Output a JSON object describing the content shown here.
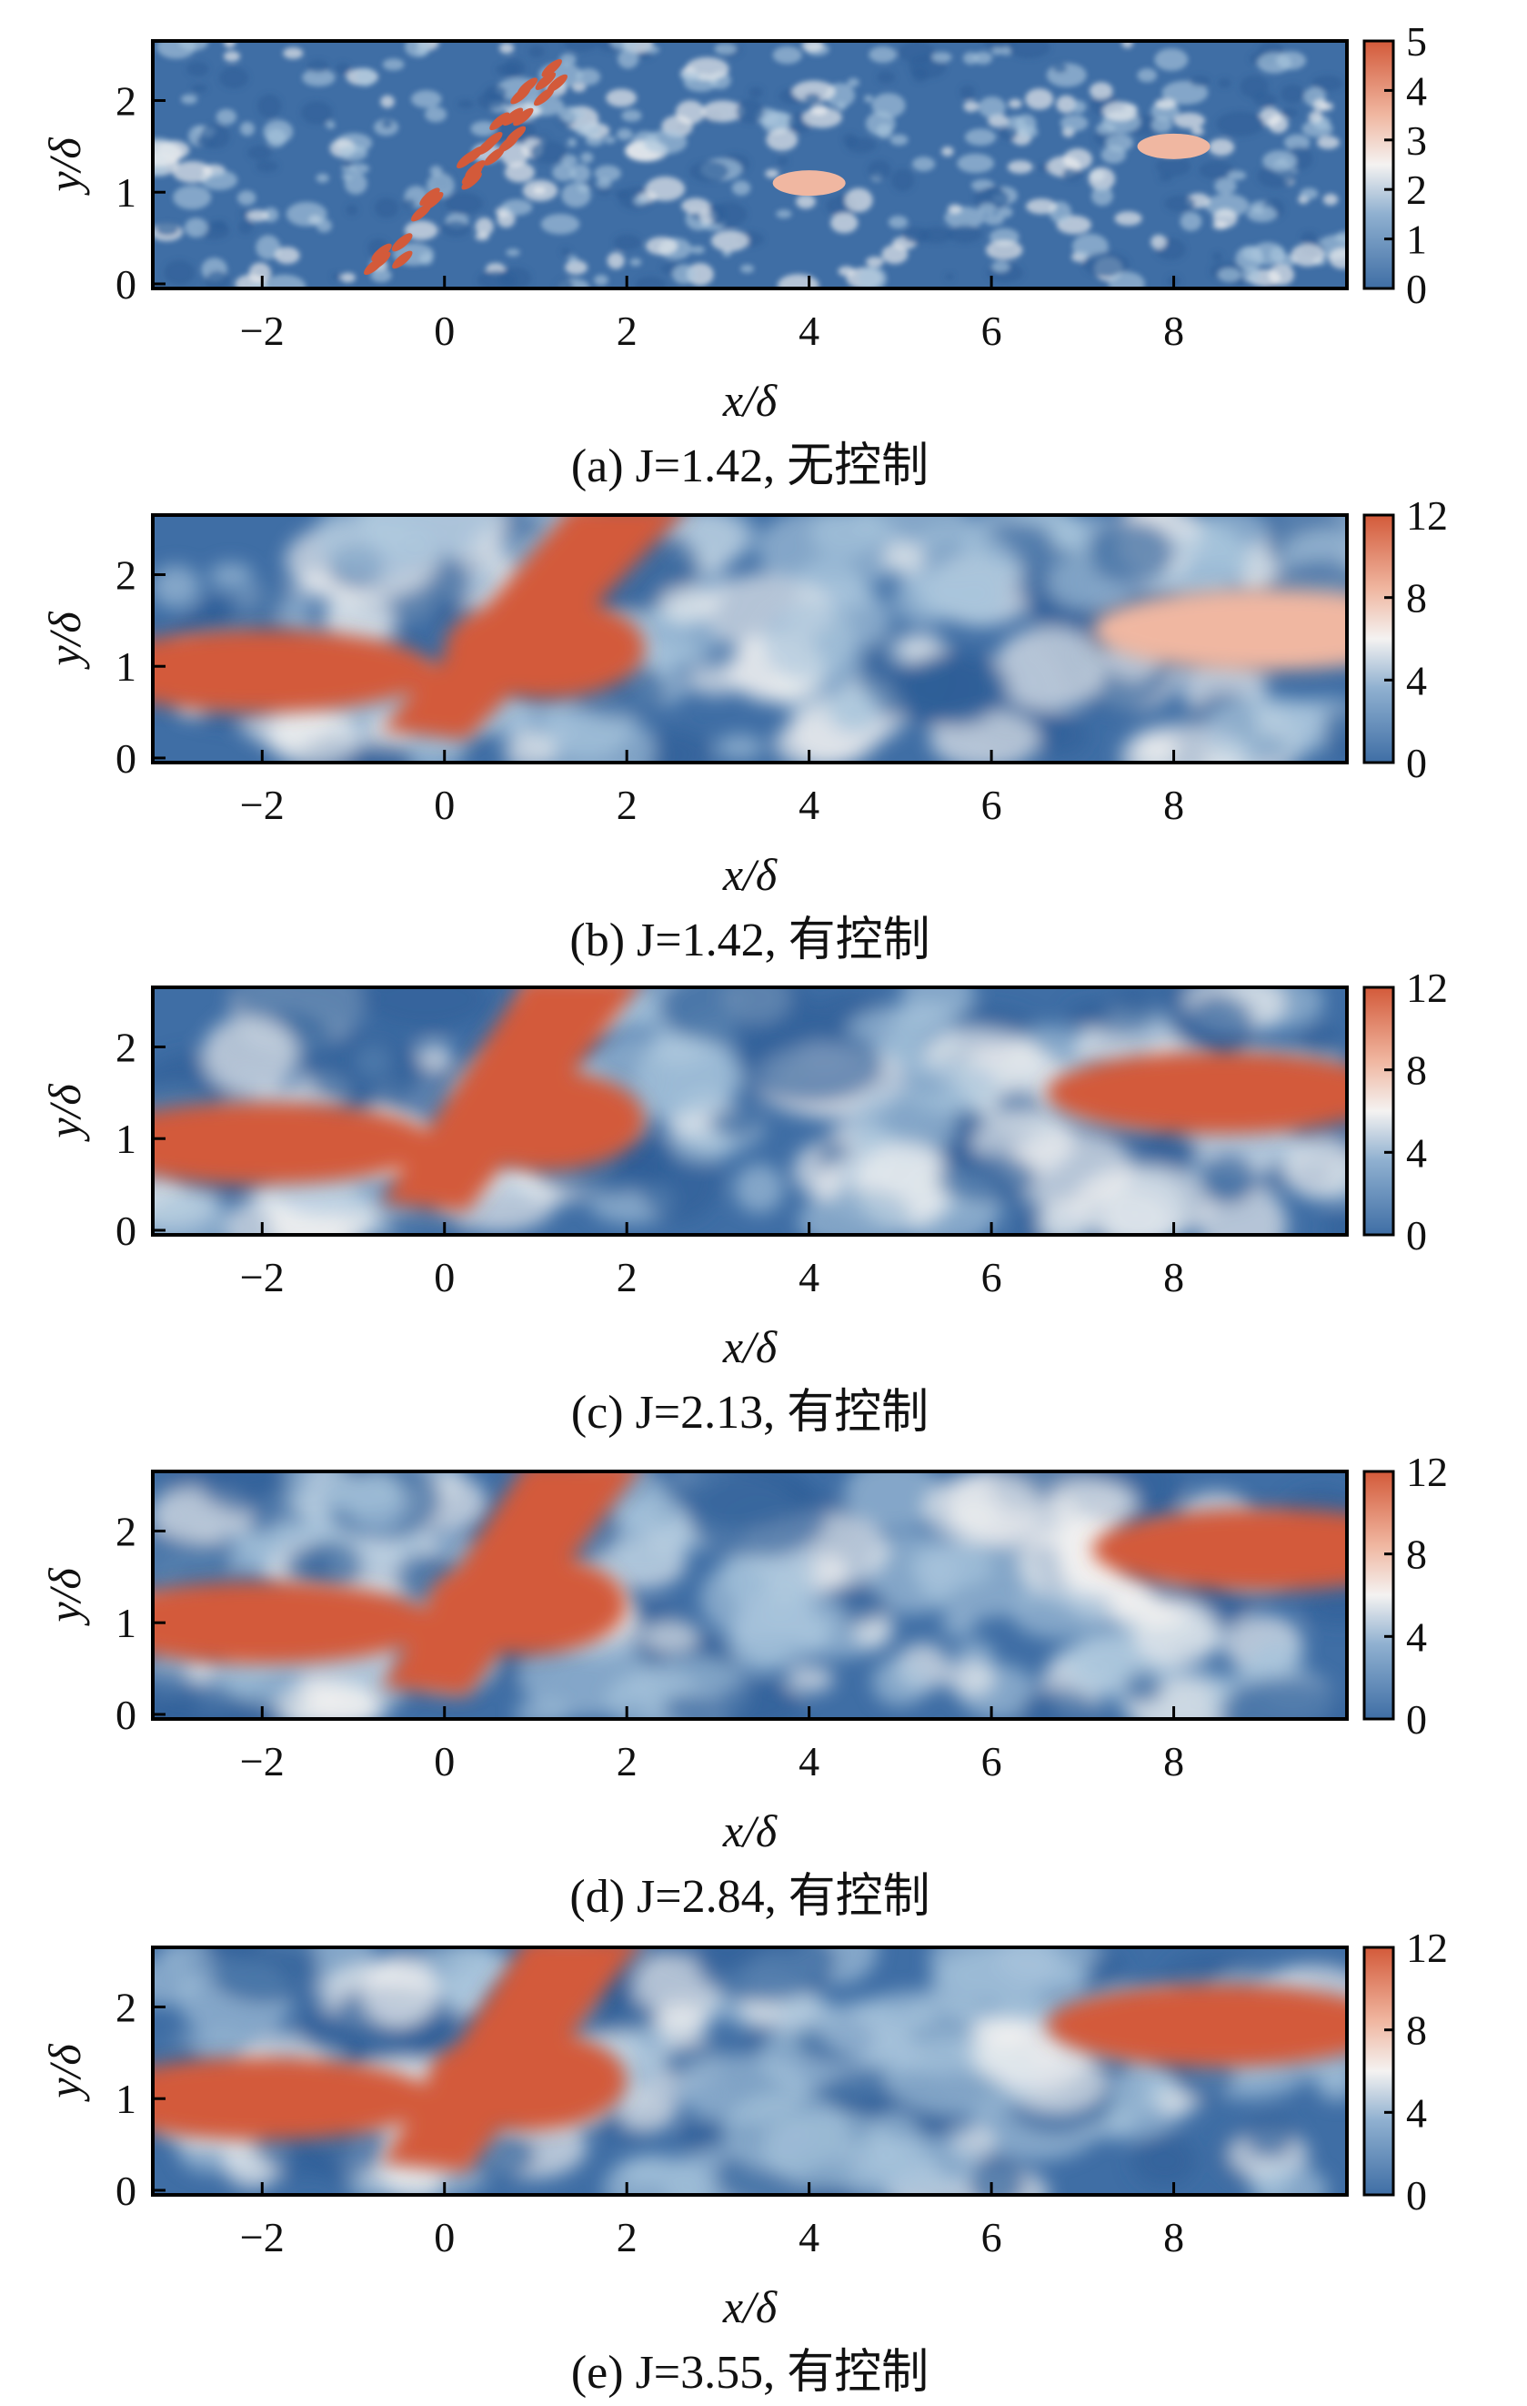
{
  "colors": {
    "low": "#3f6ea5",
    "mid_low": "#a9c4db",
    "mid": "#f4f2f1",
    "mid_high": "#f0b7a1",
    "high": "#d35a3a"
  },
  "chart_data": [
    {
      "type": "heatmap",
      "panel": "a",
      "caption": "(a) J=1.42, 无控制",
      "xlabel": "x/δ",
      "ylabel": "y/δ",
      "xlim": [
        -3.2,
        9.9
      ],
      "ylim": [
        -0.05,
        2.65
      ],
      "xticks": [
        "−2",
        "0",
        "2",
        "4",
        "6",
        "8"
      ],
      "yticks": [
        "0",
        "1",
        "2"
      ],
      "colorbar": {
        "min": 0,
        "max": 5,
        "ticks": [
          "0",
          "1",
          "2",
          "3",
          "4",
          "5"
        ]
      },
      "high_regions": [
        {
          "x": 0.0,
          "y": 1.0,
          "value": 4.5,
          "note": "jet streaks"
        },
        {
          "x": 4.0,
          "y": 1.1,
          "value": 3.8
        },
        {
          "x": 8.0,
          "y": 1.5,
          "value": 3.8
        }
      ]
    },
    {
      "type": "heatmap",
      "panel": "b",
      "caption": "(b) J=1.42, 有控制",
      "xlabel": "x/δ",
      "ylabel": "y/δ",
      "xlim": [
        -3.2,
        9.9
      ],
      "ylim": [
        -0.05,
        2.65
      ],
      "xticks": [
        "−2",
        "0",
        "2",
        "4",
        "6",
        "8"
      ],
      "yticks": [
        "0",
        "1",
        "2"
      ],
      "colorbar": {
        "min": 0,
        "max": 12,
        "ticks": [
          "0",
          "4",
          "8",
          "12"
        ]
      },
      "high_regions": [
        {
          "x": -2.0,
          "y": 0.95,
          "value": 11
        },
        {
          "x": 0.5,
          "y": 1.5,
          "value": 12,
          "note": "jet plume"
        },
        {
          "x": 9.0,
          "y": 1.4,
          "value": 9
        }
      ]
    },
    {
      "type": "heatmap",
      "panel": "c",
      "caption": "(c) J=2.13, 有控制",
      "xlabel": "x/δ",
      "ylabel": "y/δ",
      "xlim": [
        -3.2,
        9.9
      ],
      "ylim": [
        -0.05,
        2.65
      ],
      "xticks": [
        "−2",
        "0",
        "2",
        "4",
        "6",
        "8"
      ],
      "yticks": [
        "0",
        "1",
        "2"
      ],
      "colorbar": {
        "min": 0,
        "max": 12,
        "ticks": [
          "0",
          "4",
          "8",
          "12"
        ]
      },
      "high_regions": [
        {
          "x": -2.0,
          "y": 0.95,
          "value": 11
        },
        {
          "x": 0.5,
          "y": 1.6,
          "value": 12,
          "note": "jet plume"
        },
        {
          "x": 8.5,
          "y": 1.5,
          "value": 11
        }
      ]
    },
    {
      "type": "heatmap",
      "panel": "d",
      "caption": "(d) J=2.84, 有控制",
      "xlabel": "x/δ",
      "ylabel": "y/δ",
      "xlim": [
        -3.2,
        9.9
      ],
      "ylim": [
        -0.05,
        2.65
      ],
      "xticks": [
        "−2",
        "0",
        "2",
        "4",
        "6",
        "8"
      ],
      "yticks": [
        "0",
        "1",
        "2"
      ],
      "colorbar": {
        "min": 0,
        "max": 12,
        "ticks": [
          "0",
          "4",
          "8",
          "12"
        ]
      },
      "high_regions": [
        {
          "x": -2.0,
          "y": 1.0,
          "value": 11
        },
        {
          "x": 0.3,
          "y": 1.7,
          "value": 12,
          "note": "jet plume"
        },
        {
          "x": 9.0,
          "y": 1.8,
          "value": 11
        }
      ]
    },
    {
      "type": "heatmap",
      "panel": "e",
      "caption": "(e) J=3.55, 有控制",
      "xlabel": "x/δ",
      "ylabel": "y/δ",
      "xlim": [
        -3.2,
        9.9
      ],
      "ylim": [
        -0.05,
        2.65
      ],
      "xticks": [
        "−2",
        "0",
        "2",
        "4",
        "6",
        "8"
      ],
      "yticks": [
        "0",
        "1",
        "2"
      ],
      "colorbar": {
        "min": 0,
        "max": 12,
        "ticks": [
          "0",
          "4",
          "8",
          "12"
        ]
      },
      "high_regions": [
        {
          "x": -2.0,
          "y": 1.0,
          "value": 11
        },
        {
          "x": 0.3,
          "y": 1.7,
          "value": 12,
          "note": "jet plume"
        },
        {
          "x": 8.5,
          "y": 1.8,
          "value": 11
        }
      ]
    }
  ]
}
